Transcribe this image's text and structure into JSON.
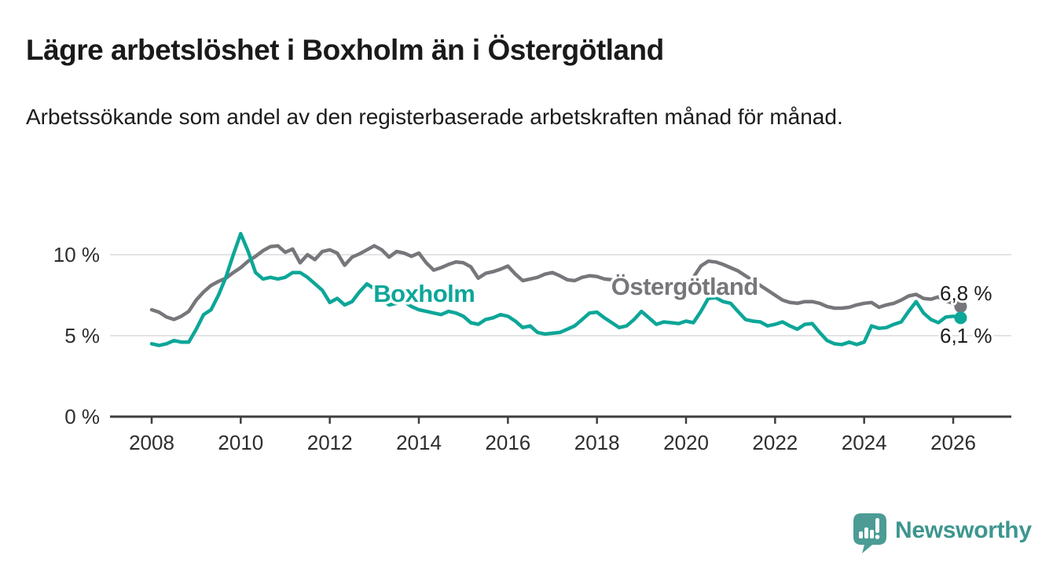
{
  "header": {
    "title": "Lägre arbetslöshet i Boxholm än i Östergötland",
    "subtitle": "Arbetssökande som andel av den registerbaserade arbetskraften månad för månad."
  },
  "chart_data": {
    "type": "line",
    "title": "Lägre arbetslöshet i Boxholm än i Östergötland",
    "subtitle": "Arbetssökande som andel av den registerbaserade arbetskraften månad för månad.",
    "x_unit": "year (monthly data, sampled every 2 months)",
    "x_start_year": 2008.0,
    "x_step_years": 0.166667,
    "x_range_years": [
      2008.0,
      2026.17
    ],
    "ylim": [
      0,
      12
    ],
    "grid": "horizontal",
    "y_ticks_pct": [
      0,
      5,
      10
    ],
    "y_tick_labels": [
      "0 %",
      "5 %",
      "10 %"
    ],
    "x_tick_labels": [
      "2008",
      "2010",
      "2012",
      "2014",
      "2016",
      "2018",
      "2020",
      "2022",
      "2024",
      "2026"
    ],
    "grid_color": "#dcdcdc",
    "axis_color": "#3f3f3f",
    "tick_text_color": "#2e2e2e",
    "value_label_color": "#1d1d1d",
    "series": [
      {
        "name": "Östergötland",
        "color": "#76767b",
        "inline_label": "Östergötland",
        "label_pos": {
          "x_year": 2018.32,
          "y_pct": 7.52
        },
        "end_value_label": "6,8 %",
        "end_value_pct": 6.8,
        "end_label_pos": {
          "x_year": 2025.7,
          "y_pct": 7.18
        },
        "values": [
          6.6,
          6.45,
          6.15,
          6.0,
          6.2,
          6.5,
          7.2,
          7.7,
          8.1,
          8.35,
          8.55,
          8.9,
          9.2,
          9.6,
          9.9,
          10.25,
          10.5,
          10.55,
          10.15,
          10.35,
          9.5,
          10.0,
          9.7,
          10.2,
          10.3,
          10.1,
          9.35,
          9.85,
          10.05,
          10.3,
          10.55,
          10.3,
          9.85,
          10.2,
          10.1,
          9.9,
          10.1,
          9.5,
          9.05,
          9.2,
          9.4,
          9.55,
          9.5,
          9.25,
          8.55,
          8.85,
          8.95,
          9.1,
          9.3,
          8.8,
          8.4,
          8.5,
          8.6,
          8.8,
          8.9,
          8.7,
          8.45,
          8.4,
          8.6,
          8.7,
          8.65,
          8.5,
          8.45,
          8.4,
          8.3,
          8.25,
          8.2,
          8.1,
          8.05,
          8.0,
          8.0,
          8.1,
          8.2,
          8.6,
          9.3,
          9.6,
          9.55,
          9.4,
          9.2,
          9.0,
          8.7,
          8.4,
          8.1,
          7.8,
          7.5,
          7.2,
          7.05,
          7.0,
          7.1,
          7.1,
          7.0,
          6.8,
          6.7,
          6.7,
          6.75,
          6.9,
          7.0,
          7.05,
          6.75,
          6.9,
          7.0,
          7.2,
          7.45,
          7.55,
          7.3,
          7.25,
          7.4,
          7.15,
          7.0,
          6.8
        ]
      },
      {
        "name": "Boxholm",
        "color": "#0da698",
        "inline_label": "Boxholm",
        "label_pos": {
          "x_year": 2012.98,
          "y_pct": 7.09
        },
        "end_value_label": "6,1 %",
        "end_value_pct": 6.1,
        "end_label_pos": {
          "x_year": 2025.7,
          "y_pct": 4.56
        },
        "values": [
          4.5,
          4.4,
          4.5,
          4.7,
          4.6,
          4.6,
          5.4,
          6.3,
          6.6,
          7.5,
          8.6,
          10.0,
          11.3,
          10.2,
          8.9,
          8.5,
          8.6,
          8.5,
          8.6,
          8.9,
          8.9,
          8.6,
          8.2,
          7.8,
          7.05,
          7.3,
          6.9,
          7.1,
          7.7,
          8.2,
          7.9,
          7.3,
          6.9,
          7.0,
          7.1,
          6.8,
          6.6,
          6.5,
          6.4,
          6.3,
          6.5,
          6.4,
          6.2,
          5.8,
          5.7,
          6.0,
          6.1,
          6.3,
          6.2,
          5.9,
          5.5,
          5.6,
          5.2,
          5.1,
          5.15,
          5.2,
          5.4,
          5.6,
          6.0,
          6.4,
          6.45,
          6.1,
          5.8,
          5.5,
          5.6,
          6.0,
          6.5,
          6.1,
          5.7,
          5.85,
          5.8,
          5.75,
          5.9,
          5.8,
          6.5,
          7.3,
          7.35,
          7.1,
          7.0,
          6.5,
          6.0,
          5.9,
          5.85,
          5.6,
          5.7,
          5.85,
          5.6,
          5.4,
          5.7,
          5.75,
          5.2,
          4.7,
          4.5,
          4.45,
          4.6,
          4.45,
          4.6,
          5.6,
          5.45,
          5.5,
          5.7,
          5.85,
          6.5,
          7.1,
          6.4,
          6.0,
          5.8,
          6.15,
          6.2,
          6.1
        ]
      }
    ]
  },
  "footer": {
    "logo_text": "Newsworthy",
    "logo_color": "#4c9c95"
  }
}
